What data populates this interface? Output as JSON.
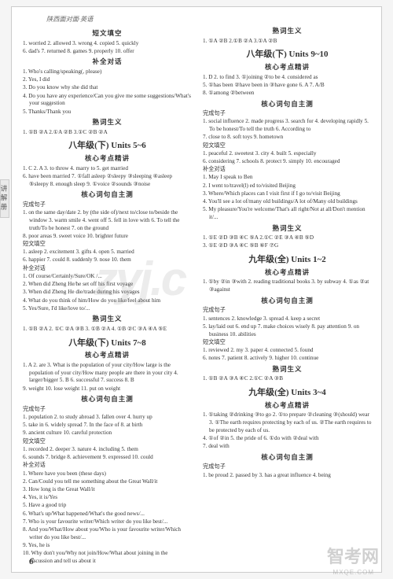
{
  "header": {
    "title": "陕西面对面·英语"
  },
  "sideTab": "讲解册",
  "pageNumber": "6",
  "watermarks": {
    "w1": "zyj.c",
    "w2": "智考网",
    "w3": "MXQE.COM"
  },
  "blocks": [
    {
      "type": "section",
      "text": "短文填空"
    },
    {
      "type": "item",
      "text": "1. worried  2. allowed  3. wrong  4. copied  5. quickly"
    },
    {
      "type": "item",
      "text": "6. dad's  7. returned  8. games  9. properly  10. offer"
    },
    {
      "type": "section",
      "text": "补全对话"
    },
    {
      "type": "item",
      "text": "1. Who's calling/speaking(, please)"
    },
    {
      "type": "item",
      "text": "2. Yes, I did"
    },
    {
      "type": "item",
      "text": "3. Do you know why she did that"
    },
    {
      "type": "item",
      "text": "4. Do you have any experience/Can you give me some suggestions/What's your suggestion"
    },
    {
      "type": "item",
      "text": "5. Thanks/Thank you"
    },
    {
      "type": "section",
      "text": "熟词生义"
    },
    {
      "type": "item",
      "text": "1. ①B  ②A  2.①A  ②B  3.①C  ②B  ②A"
    },
    {
      "type": "unit",
      "text": "八年级(下)  Units 5~6"
    },
    {
      "type": "section",
      "text": "核心考点精讲"
    },
    {
      "type": "item",
      "text": "1. C  2. A  3. to throw  4. marry to  5. get married"
    },
    {
      "type": "item",
      "text": "6. have been married  7. ①fall asleep  ②sleepy  ③sleeping ④asleep  ⑤sleepy  8. enough sleep  9. ①voice  ②sounds ③noise"
    },
    {
      "type": "section",
      "text": "核心词句自主测"
    },
    {
      "type": "item",
      "text": "完成句子"
    },
    {
      "type": "item",
      "text": "1. on the same day/date  2. by (the side of)/next to/close to/beside the window  3. warm smile  4. went off  5. fell in love with  6. To tell the truth/To be honest  7. on the ground"
    },
    {
      "type": "item",
      "text": "8. poor areas  9. sweet voice  10. brighter future"
    },
    {
      "type": "item",
      "text": "短文填空"
    },
    {
      "type": "item",
      "text": "1. asleep  2. excitement  3. gifts  4. open  5. married"
    },
    {
      "type": "item",
      "text": "6. happier  7. could  8. suddenly  9. nose  10. them"
    },
    {
      "type": "item",
      "text": "补全对话"
    },
    {
      "type": "item",
      "text": "1. Of course/Certainly/Sure/OK /..."
    },
    {
      "type": "item",
      "text": "2. When did Zheng He/he set off his first voyage"
    },
    {
      "type": "item",
      "text": "3. When did Zheng He die/trade during his voyages"
    },
    {
      "type": "item",
      "text": "4. What do you think of him/How do you like/feel about him"
    },
    {
      "type": "item",
      "text": "5. Yes/Sure, I'd like/love to/..."
    },
    {
      "type": "section",
      "text": "熟词生义"
    },
    {
      "type": "item",
      "text": "1. ①B  ②A  2. ①C  ②A  ③B  3. ①B  ②A  4. ①B  ②C  ③A  ④A  ⑤E"
    },
    {
      "type": "unit",
      "text": "八年级(下)  Units 7~8"
    },
    {
      "type": "section",
      "text": "核心考点精讲"
    },
    {
      "type": "item",
      "text": "1. A  2. are  3. What is the population of your city/How large is the population of your city/How many people are there in your city  4. larger/bigger  5. B  6. successful  7. success  8. B"
    },
    {
      "type": "item",
      "text": "9. weight  10. lose weight  11. put on weight"
    },
    {
      "type": "section",
      "text": "核心词句自主测"
    },
    {
      "type": "item",
      "text": "完成句子"
    },
    {
      "type": "item",
      "text": "1. population  2. to study abroad  3. fallen over  4. hurry up"
    },
    {
      "type": "item",
      "text": "5. take in  6. widely spread  7. In the face of  8. at birth"
    },
    {
      "type": "item",
      "text": "9. ancient culture  10. careful protection"
    },
    {
      "type": "item",
      "text": "短文填空"
    },
    {
      "type": "item",
      "text": "1. recorded  2. deeper  3. nature  4. including  5. them"
    },
    {
      "type": "item",
      "text": "6. sounds  7. bridge  8. achievement  9. expressed  10. could"
    },
    {
      "type": "item",
      "text": "补全对话"
    },
    {
      "type": "item",
      "text": "1. Where have you been (these days)"
    },
    {
      "type": "item",
      "text": "2. Can/Could you tell me something about the Great Wall/it"
    },
    {
      "type": "item",
      "text": "3. How long is the Great Wall/it"
    },
    {
      "type": "item",
      "text": "4. Yes, it is/Yes"
    },
    {
      "type": "item",
      "text": "5. Have a good trip"
    },
    {
      "type": "item",
      "text": "6. What's up/What happened/What's the good news/..."
    },
    {
      "type": "item",
      "text": "7. Who is your favourite writer/Which writer do you like best/..."
    },
    {
      "type": "item",
      "text": "8. And you/What/How about you/Who is your favourite writer/Which writer do you like best/..."
    },
    {
      "type": "item",
      "text": "9. Yes, he is"
    },
    {
      "type": "item",
      "text": "10. Why don't you/Why not join/How/What about joining in the discussion and tell us about it"
    },
    {
      "type": "section",
      "text": "熟词生义"
    },
    {
      "type": "item",
      "text": "1. ①A  ②B  2.①B  ②A  3.①A  ②B"
    },
    {
      "type": "unit",
      "text": "八年级(下)  Units 9~10"
    },
    {
      "type": "section",
      "text": "核心考点精讲"
    },
    {
      "type": "item",
      "text": "1. D  2. to find  3. ①joining  ②to be  4. considered as"
    },
    {
      "type": "item",
      "text": "5. ①has been  ②have been in  ③have gone  6. A  7. A/B"
    },
    {
      "type": "item",
      "text": "8. ①among  ②between"
    },
    {
      "type": "section",
      "text": "核心词句自主测"
    },
    {
      "type": "item",
      "text": "完成句子"
    },
    {
      "type": "item",
      "text": "1. social influence  2. made progress  3. search for  4. developing rapidly  5. To be honest/To tell the truth  6. According to"
    },
    {
      "type": "item",
      "text": "7. close to  8. soft toys  9. hometown"
    },
    {
      "type": "item",
      "text": "短文填空"
    },
    {
      "type": "item",
      "text": "1. peaceful  2. sweetest  3. city  4. built  5. especially"
    },
    {
      "type": "item",
      "text": "6. considering  7. schools  8. protect  9. simply  10. encouraged"
    },
    {
      "type": "item",
      "text": "补全对话"
    },
    {
      "type": "item",
      "text": "1. May I speak to Ben"
    },
    {
      "type": "item",
      "text": "2. I went to/travel(l) ed to/visited Beijing"
    },
    {
      "type": "item",
      "text": "3. Where/Which places can I visit first if I go to/visit Beijing"
    },
    {
      "type": "item",
      "text": "4. You'll see a lot of/many old buildings/A lot of/Many old buildings"
    },
    {
      "type": "item",
      "text": "5. My pleasure/You're welcome/That's all right/Not at all/Don't mention it/..."
    },
    {
      "type": "section",
      "text": "熟词生义"
    },
    {
      "type": "item",
      "text": "1. ①E  ②D  ③B  ④C  ⑤A  2.①C  ②E  ③A  ④B  ⑤D"
    },
    {
      "type": "item",
      "text": "3. ①E  ②D  ③A  ④C  ⑤B  ⑥F  ⑦G"
    },
    {
      "type": "unit",
      "text": "九年级(全)  Units 1~2"
    },
    {
      "type": "section",
      "text": "核心考点精讲"
    },
    {
      "type": "item",
      "text": "1. ①by  ②in  ③with  2. reading traditional books  3. by subway  4. ①as  ②at  ③against"
    },
    {
      "type": "section",
      "text": "核心词句自主测"
    },
    {
      "type": "item",
      "text": "完成句子"
    },
    {
      "type": "item",
      "text": "1. sentences  2. knowledge  3. spread  4. keep a secret"
    },
    {
      "type": "item",
      "text": "5. lay/laid out  6. end up  7. make choices wisely  8. pay attention  9. on business  10. abilities"
    },
    {
      "type": "item",
      "text": "短文填空"
    },
    {
      "type": "item",
      "text": "1. reviewed  2. my  3. paper  4. connected  5. found"
    },
    {
      "type": "item",
      "text": "6. notes  7. patient  8. actively  9. higher  10. continue"
    },
    {
      "type": "section",
      "text": "熟词生义"
    },
    {
      "type": "item",
      "text": "1. ①B  ②A  ③A  ④C  2.①C  ②A  ③B"
    },
    {
      "type": "unit",
      "text": "九年级(全)  Units 3~4"
    },
    {
      "type": "section",
      "text": "核心考点精讲"
    },
    {
      "type": "item",
      "text": "1. ①taking  ②drinking  ③to go  2. ①to prepare  ②cleaning ③(should) wear  3. ①The earth requires protecting by each of us.  ②The earth requires to be protected by each of us."
    },
    {
      "type": "item",
      "text": "4. ①of  ②in  5. the pride of  6. ①do with  ②deal with"
    },
    {
      "type": "item",
      "text": "7. deal with"
    },
    {
      "type": "section",
      "text": "核心词句自主测"
    },
    {
      "type": "item",
      "text": "完成句子"
    },
    {
      "type": "item",
      "text": "1. be proud  2. passed by  3. has a great influence  4. being"
    }
  ]
}
